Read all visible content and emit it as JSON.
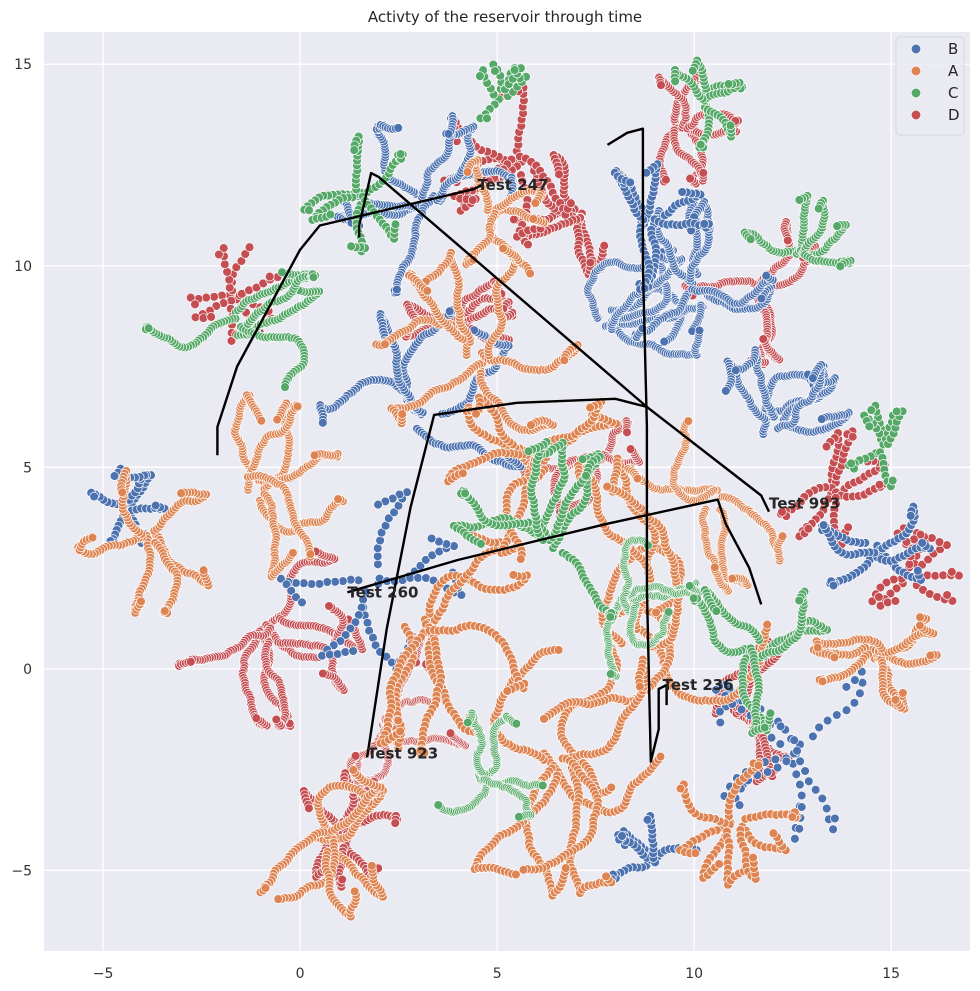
{
  "chart_data": {
    "type": "scatter",
    "title": "Activty of the reservoir through time",
    "xlabel": "",
    "ylabel": "",
    "xlim": [
      -6.5,
      17.0
    ],
    "ylim": [
      -7.0,
      15.8
    ],
    "xticks": [
      -5,
      0,
      5,
      10,
      15
    ],
    "yticks": [
      -5,
      0,
      5,
      10,
      15
    ],
    "grid": true,
    "legend": {
      "placement": "top-right",
      "entries": [
        "B",
        "A",
        "C",
        "D"
      ]
    },
    "colors": {
      "B": "#4c72b0",
      "A": "#dd8452",
      "C": "#55a868",
      "D": "#c44e52",
      "path": "#000000",
      "background": "#eaeaf2"
    },
    "series": [
      {
        "name": "B",
        "clusters": [
          {
            "cx": 3.2,
            "cy": 11.5,
            "r": 1.5,
            "n": 320,
            "seed": 11
          },
          {
            "cx": 7.8,
            "cy": 8.6,
            "r": 1.6,
            "n": 340,
            "seed": 12
          },
          {
            "cx": 12.0,
            "cy": 6.0,
            "r": 1.3,
            "n": 280,
            "seed": 13
          },
          {
            "cx": 10.0,
            "cy": 9.6,
            "r": 1.3,
            "n": 240,
            "seed": 14
          },
          {
            "cx": 3.2,
            "cy": 6.3,
            "r": 1.8,
            "n": 240,
            "seed": 15
          },
          {
            "cx": 8.8,
            "cy": 11.0,
            "r": 1.0,
            "n": 120,
            "seed": 16
          },
          {
            "cx": -4.4,
            "cy": 4.0,
            "r": 0.6,
            "n": 70,
            "seed": 17
          },
          {
            "cx": 14.6,
            "cy": 3.0,
            "r": 0.9,
            "n": 90,
            "seed": 18
          },
          {
            "cx": 9.0,
            "cy": -4.8,
            "r": 0.7,
            "n": 60,
            "seed": 19
          },
          {
            "cx": 12.6,
            "cy": -1.8,
            "r": 1.5,
            "n": 90,
            "seed": 20
          },
          {
            "cx": 1.8,
            "cy": 2.2,
            "r": 1.5,
            "n": 90,
            "seed": 21
          }
        ]
      },
      {
        "name": "A",
        "clusters": [
          {
            "cx": -1.2,
            "cy": 4.5,
            "r": 1.5,
            "n": 320,
            "seed": 31
          },
          {
            "cx": -3.8,
            "cy": 3.2,
            "r": 1.2,
            "n": 180,
            "seed": 32
          },
          {
            "cx": 4.5,
            "cy": 7.8,
            "r": 1.7,
            "n": 320,
            "seed": 33
          },
          {
            "cx": 8.2,
            "cy": 1.0,
            "r": 2.8,
            "n": 420,
            "seed": 34
          },
          {
            "cx": 10.5,
            "cy": 4.2,
            "r": 1.5,
            "n": 260,
            "seed": 35
          },
          {
            "cx": 14.6,
            "cy": 0.4,
            "r": 1.0,
            "n": 200,
            "seed": 36
          },
          {
            "cx": 0.6,
            "cy": -4.3,
            "r": 1.3,
            "n": 220,
            "seed": 37
          },
          {
            "cx": 6.5,
            "cy": -2.3,
            "r": 2.2,
            "n": 320,
            "seed": 38
          },
          {
            "cx": 4.8,
            "cy": 11.3,
            "r": 0.9,
            "n": 130,
            "seed": 39
          },
          {
            "cx": 3.0,
            "cy": 1.0,
            "r": 2.0,
            "n": 240,
            "seed": 40
          },
          {
            "cx": 11.0,
            "cy": -3.8,
            "r": 1.0,
            "n": 120,
            "seed": 41
          },
          {
            "cx": 6.0,
            "cy": 5.0,
            "r": 1.5,
            "n": 200,
            "seed": 42
          }
        ]
      },
      {
        "name": "C",
        "clusters": [
          {
            "cx": -1.6,
            "cy": 8.5,
            "r": 1.5,
            "n": 200,
            "seed": 51
          },
          {
            "cx": 8.3,
            "cy": 1.6,
            "r": 1.2,
            "n": 260,
            "seed": 52
          },
          {
            "cx": 4.7,
            "cy": -2.6,
            "r": 1.0,
            "n": 200,
            "seed": 53
          },
          {
            "cx": 11.5,
            "cy": 0.4,
            "r": 1.3,
            "n": 180,
            "seed": 54
          },
          {
            "cx": 10.2,
            "cy": 14.0,
            "r": 0.7,
            "n": 90,
            "seed": 55
          },
          {
            "cx": 12.6,
            "cy": 10.4,
            "r": 0.9,
            "n": 120,
            "seed": 56
          },
          {
            "cx": 6.3,
            "cy": 3.2,
            "r": 1.6,
            "n": 220,
            "seed": 57
          },
          {
            "cx": 1.5,
            "cy": 11.8,
            "r": 0.9,
            "n": 90,
            "seed": 58
          },
          {
            "cx": 14.8,
            "cy": 5.5,
            "r": 0.6,
            "n": 50,
            "seed": 59
          },
          {
            "cx": 5.1,
            "cy": 14.2,
            "r": 0.5,
            "n": 40,
            "seed": 60
          }
        ]
      },
      {
        "name": "D",
        "clusters": [
          {
            "cx": -0.8,
            "cy": 1.0,
            "r": 1.6,
            "n": 400,
            "seed": 71
          },
          {
            "cx": 2.2,
            "cy": -1.2,
            "r": 1.4,
            "n": 320,
            "seed": 72
          },
          {
            "cx": 9.7,
            "cy": 13.4,
            "r": 0.9,
            "n": 200,
            "seed": 73
          },
          {
            "cx": 11.6,
            "cy": 9.4,
            "r": 1.2,
            "n": 200,
            "seed": 74
          },
          {
            "cx": 7.1,
            "cy": 5.2,
            "r": 1.0,
            "n": 180,
            "seed": 75
          },
          {
            "cx": 7.0,
            "cy": 11.3,
            "r": 1.0,
            "n": 120,
            "seed": 76
          },
          {
            "cx": 4.0,
            "cy": 8.6,
            "r": 0.9,
            "n": 150,
            "seed": 77
          },
          {
            "cx": 1.1,
            "cy": -4.0,
            "r": 0.9,
            "n": 140,
            "seed": 78
          },
          {
            "cx": 10.8,
            "cy": -1.0,
            "r": 1.3,
            "n": 160,
            "seed": 79
          },
          {
            "cx": 5.5,
            "cy": 12.6,
            "r": 1.2,
            "n": 120,
            "seed": 80
          },
          {
            "cx": 15.5,
            "cy": 2.3,
            "r": 0.7,
            "n": 60,
            "seed": 81
          },
          {
            "cx": -1.7,
            "cy": 9.3,
            "r": 0.7,
            "n": 60,
            "seed": 82
          },
          {
            "cx": 13.5,
            "cy": 4.5,
            "r": 0.9,
            "n": 90,
            "seed": 83
          }
        ]
      }
    ],
    "paths": [
      [
        [
          -2.1,
          5.3
        ],
        [
          -2.1,
          6.0
        ],
        [
          -1.6,
          7.5
        ],
        [
          0.0,
          10.4
        ],
        [
          0.5,
          11.0
        ],
        [
          4.4,
          11.9
        ],
        [
          4.6,
          12.0
        ]
      ],
      [
        [
          1.5,
          10.7
        ],
        [
          1.5,
          11.0
        ],
        [
          1.8,
          12.3
        ],
        [
          2.0,
          12.2
        ],
        [
          8.8,
          6.5
        ],
        [
          11.7,
          4.3
        ],
        [
          11.9,
          3.9
        ]
      ],
      [
        [
          7.8,
          13.0
        ],
        [
          8.3,
          13.3
        ],
        [
          8.7,
          13.4
        ],
        [
          8.7,
          10.0
        ],
        [
          8.8,
          6.0
        ],
        [
          8.8,
          2.0
        ],
        [
          8.9,
          -2.3
        ],
        [
          9.1,
          -1.5
        ],
        [
          9.1,
          -0.5
        ],
        [
          9.3,
          -0.4
        ],
        [
          9.3,
          -0.9
        ]
      ],
      [
        [
          1.2,
          1.9
        ],
        [
          4.0,
          2.7
        ],
        [
          7.8,
          3.6
        ],
        [
          10.6,
          4.2
        ],
        [
          10.8,
          3.6
        ],
        [
          11.4,
          2.5
        ],
        [
          11.7,
          1.6
        ]
      ],
      [
        [
          1.7,
          -2.2
        ],
        [
          2.2,
          1.0
        ],
        [
          2.8,
          4.0
        ],
        [
          3.4,
          6.3
        ],
        [
          5.5,
          6.6
        ],
        [
          8.0,
          6.7
        ],
        [
          8.8,
          6.5
        ]
      ]
    ],
    "annotations": [
      {
        "text": "Test 247",
        "x": 4.5,
        "y": 12.0
      },
      {
        "text": "Test 993",
        "x": 11.9,
        "y": 4.1
      },
      {
        "text": "Test 260",
        "x": 1.2,
        "y": 1.9
      },
      {
        "text": "Test 236",
        "x": 9.2,
        "y": -0.4
      },
      {
        "text": "Test 923",
        "x": 1.7,
        "y": -2.1
      }
    ]
  }
}
